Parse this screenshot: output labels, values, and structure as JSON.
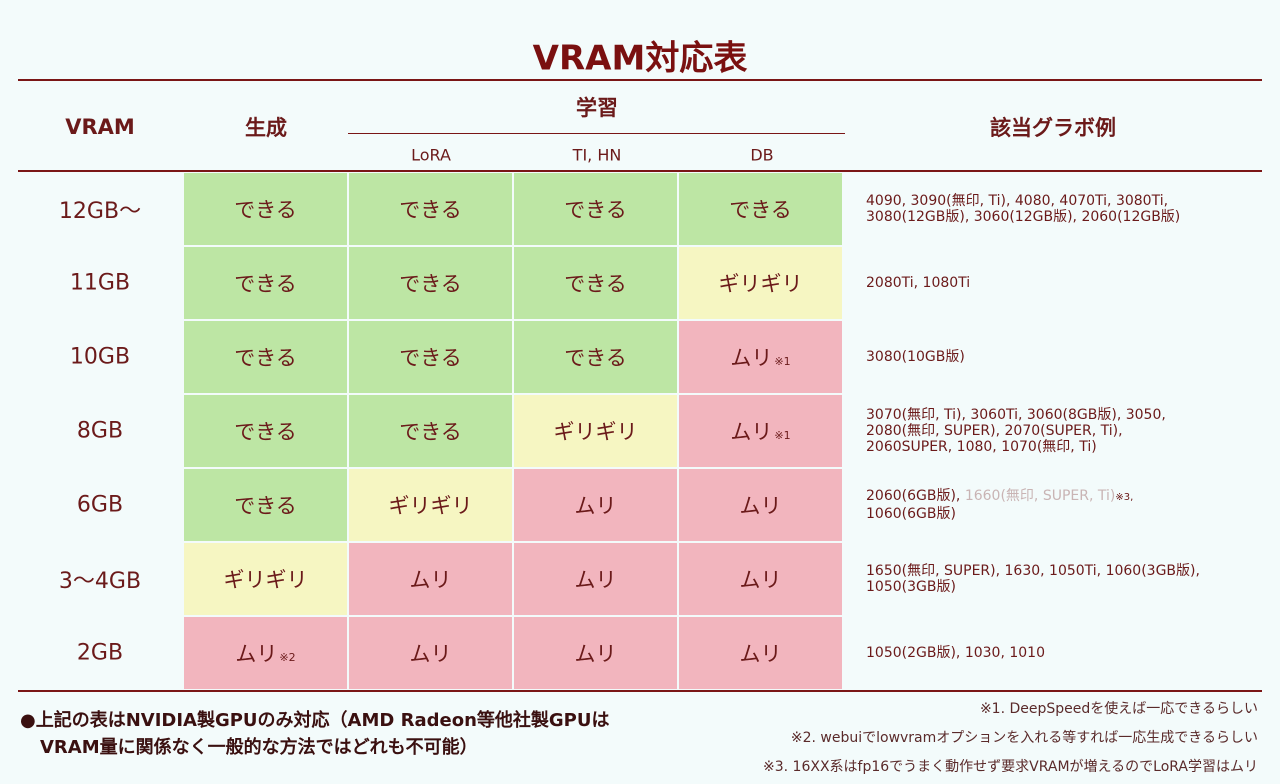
{
  "title": "VRAM対応表",
  "header": {
    "vram": "VRAM",
    "generate": "生成",
    "training": "学習",
    "lora": "LoRA",
    "ti_hn": "TI, HN",
    "db": "DB",
    "gpus": "該当グラボ例"
  },
  "rows": [
    {
      "vram": "12GB〜",
      "cells": [
        {
          "text": "できる",
          "color": "#bde6a4"
        },
        {
          "text": "できる",
          "color": "#bde6a4"
        },
        {
          "text": "できる",
          "color": "#bde6a4"
        },
        {
          "text": "できる",
          "color": "#bde6a4"
        }
      ],
      "gpus": [
        "4090, 3090(無印, Ti), 4080, 4070Ti, 3080Ti,",
        "3080(12GB版), 3060(12GB版), 2060(12GB版)"
      ]
    },
    {
      "vram": "11GB",
      "cells": [
        {
          "text": "できる",
          "color": "#bde6a4"
        },
        {
          "text": "できる",
          "color": "#bde6a4"
        },
        {
          "text": "できる",
          "color": "#bde6a4"
        },
        {
          "text": "ギリギリ",
          "color": "#f6f6c2"
        }
      ],
      "gpus": [
        "2080Ti, 1080Ti"
      ]
    },
    {
      "vram": "10GB",
      "cells": [
        {
          "text": "できる",
          "color": "#bde6a4"
        },
        {
          "text": "できる",
          "color": "#bde6a4"
        },
        {
          "text": "できる",
          "color": "#bde6a4"
        },
        {
          "text": "ムリ",
          "note": "※1",
          "color": "#f2b5be"
        }
      ],
      "gpus": [
        "3080(10GB版)"
      ]
    },
    {
      "vram": "8GB",
      "cells": [
        {
          "text": "できる",
          "color": "#bde6a4"
        },
        {
          "text": "できる",
          "color": "#bde6a4"
        },
        {
          "text": "ギリギリ",
          "color": "#f6f6c2"
        },
        {
          "text": "ムリ",
          "note": "※1",
          "color": "#f2b5be"
        }
      ],
      "gpus": [
        "3070(無印, Ti), 3060Ti, 3060(8GB版), 3050,",
        "2080(無印, SUPER), 2070(SUPER, Ti),",
        "2060SUPER, 1080, 1070(無印, Ti)"
      ]
    },
    {
      "vram": "6GB",
      "cells": [
        {
          "text": "できる",
          "color": "#bde6a4"
        },
        {
          "text": "ギリギリ",
          "color": "#f6f6c2"
        },
        {
          "text": "ムリ",
          "color": "#f2b5be"
        },
        {
          "text": "ムリ",
          "color": "#f2b5be"
        }
      ],
      "gpus": [
        [
          {
            "text": "2060(6GB版), "
          },
          {
            "text": "1660(無印, SUPER, Ti)",
            "color": "#c9b4b4"
          },
          {
            "text": "※3,",
            "small": true
          }
        ],
        "1060(6GB版)"
      ]
    },
    {
      "vram": "3〜4GB",
      "cells": [
        {
          "text": "ギリギリ",
          "color": "#f6f6c2"
        },
        {
          "text": "ムリ",
          "color": "#f2b5be"
        },
        {
          "text": "ムリ",
          "color": "#f2b5be"
        },
        {
          "text": "ムリ",
          "color": "#f2b5be"
        }
      ],
      "gpus": [
        "1650(無印, SUPER), 1630, 1050Ti, 1060(3GB版),",
        "1050(3GB版)"
      ]
    },
    {
      "vram": "2GB",
      "cells": [
        {
          "text": "ムリ",
          "note": "※2",
          "color": "#f2b5be"
        },
        {
          "text": "ムリ",
          "color": "#f2b5be"
        },
        {
          "text": "ムリ",
          "color": "#f2b5be"
        },
        {
          "text": "ムリ",
          "color": "#f2b5be"
        }
      ],
      "gpus": [
        "1050(2GB版), 1030, 1010"
      ]
    }
  ],
  "footer": {
    "left": [
      "●上記の表はNVIDIA製GPUのみ対応（AMD Radeon等他社製GPUは",
      "VRAM量に関係なく一般的な方法ではどれも不可能）"
    ],
    "notes": [
      "※1. DeepSpeedを使えば一応できるらしい",
      "※2. webuiでlowvramオプションを入れる等すれば一応生成できるらしい",
      "※3. 16XX系はfp16でうまく動作せず要求VRAMが増えるのでLoRA学習はムリ"
    ]
  }
}
